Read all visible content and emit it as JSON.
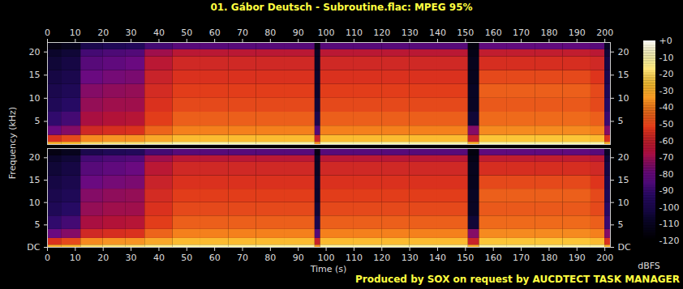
{
  "chart_data": {
    "type": "spectrogram",
    "title": "01. Gábor Deutsch - Subroutine.flac: MPEG 95%",
    "caption": "Produced by SOX on request by AUCDTECT TASK MANAGER",
    "x_label": "Time (s)",
    "y_label": "Frequency (kHz)",
    "xlim": [
      0,
      202
    ],
    "xticks": [
      0,
      10,
      20,
      30,
      40,
      50,
      60,
      70,
      80,
      90,
      100,
      110,
      120,
      130,
      140,
      150,
      160,
      170,
      180,
      190,
      200
    ],
    "ylim": [
      0,
      22.05
    ],
    "x_edges": [
      0,
      5,
      12,
      20,
      28,
      35,
      45,
      55,
      65,
      75,
      85,
      96,
      98,
      110,
      120,
      130,
      140,
      151,
      155,
      165,
      175,
      185,
      195,
      200,
      202
    ],
    "y_edges": [
      0,
      0.5,
      2,
      4,
      7,
      10,
      13,
      16,
      19,
      20.5,
      22.05
    ],
    "colorbar": {
      "label": "dBFS",
      "range": [
        -120,
        0
      ],
      "ticks": [
        {
          "value": 0,
          "label": "+0"
        },
        -10,
        -20,
        -30,
        -40,
        -50,
        -60,
        -70,
        -80,
        -90,
        -100,
        -110,
        -120
      ],
      "colors": [
        "#000000",
        "#0c0630",
        "#2a0a6a",
        "#6a0a80",
        "#b0103a",
        "#e0361a",
        "#f5801c",
        "#fcc232",
        "#fff59a",
        "#ffffff"
      ]
    },
    "channels": [
      {
        "yticks": [
          5,
          10,
          15,
          20
        ],
        "values": [
          [
            -30,
            -28,
            -20,
            -18,
            -18,
            -15,
            -12,
            -12,
            -12,
            -12,
            -12,
            -35,
            -12,
            -12,
            -12,
            -12,
            -12,
            -30,
            -12,
            -12,
            -12,
            -12,
            -12,
            -30
          ],
          [
            -55,
            -50,
            -38,
            -36,
            -36,
            -32,
            -28,
            -28,
            -28,
            -28,
            -28,
            -60,
            -28,
            -28,
            -28,
            -28,
            -28,
            -60,
            -26,
            -26,
            -26,
            -26,
            -28,
            -55
          ],
          [
            -80,
            -75,
            -58,
            -56,
            -55,
            -45,
            -40,
            -40,
            -40,
            -40,
            -40,
            -85,
            -40,
            -40,
            -40,
            -40,
            -40,
            -75,
            -38,
            -38,
            -38,
            -38,
            -40,
            -75
          ],
          [
            -92,
            -88,
            -68,
            -66,
            -65,
            -52,
            -46,
            -46,
            -46,
            -46,
            -46,
            -100,
            -46,
            -46,
            -46,
            -46,
            -46,
            -105,
            -44,
            -44,
            -44,
            -44,
            -46,
            -90
          ],
          [
            -98,
            -95,
            -72,
            -70,
            -70,
            -55,
            -50,
            -50,
            -50,
            -50,
            -50,
            -105,
            -50,
            -50,
            -50,
            -50,
            -50,
            -110,
            -47,
            -47,
            -47,
            -47,
            -50,
            -95
          ],
          [
            -100,
            -98,
            -75,
            -73,
            -72,
            -57,
            -52,
            -52,
            -52,
            -52,
            -52,
            -108,
            -52,
            -52,
            -52,
            -52,
            -52,
            -110,
            -46,
            -46,
            -46,
            -46,
            -50,
            -98
          ],
          [
            -102,
            -100,
            -80,
            -78,
            -77,
            -60,
            -55,
            -55,
            -55,
            -55,
            -55,
            -108,
            -55,
            -55,
            -55,
            -55,
            -55,
            -112,
            -50,
            -50,
            -50,
            -50,
            -54,
            -100
          ],
          [
            -105,
            -102,
            -84,
            -82,
            -80,
            -64,
            -58,
            -58,
            -58,
            -58,
            -58,
            -110,
            -58,
            -58,
            -58,
            -58,
            -58,
            -112,
            -56,
            -56,
            -56,
            -56,
            -58,
            -102
          ],
          [
            -108,
            -105,
            -88,
            -86,
            -85,
            -70,
            -64,
            -64,
            -64,
            -64,
            -64,
            -110,
            -64,
            -64,
            -64,
            -64,
            -64,
            -114,
            -62,
            -62,
            -62,
            -62,
            -64,
            -105
          ],
          [
            -115,
            -112,
            -100,
            -98,
            -97,
            -88,
            -84,
            -84,
            -84,
            -84,
            -84,
            -115,
            -84,
            -84,
            -84,
            -84,
            -84,
            -116,
            -82,
            -82,
            -82,
            -82,
            -84,
            -110
          ]
        ]
      },
      {
        "yticks": [
          {
            "value": 0,
            "label": "DC"
          },
          5,
          10,
          15,
          20
        ],
        "values": [
          [
            -30,
            -28,
            -20,
            -18,
            -18,
            -15,
            -12,
            -12,
            -12,
            -12,
            -12,
            -35,
            -12,
            -12,
            -12,
            -12,
            -12,
            -30,
            -12,
            -12,
            -12,
            -12,
            -12,
            -30
          ],
          [
            -55,
            -50,
            -38,
            -36,
            -36,
            -32,
            -28,
            -28,
            -28,
            -28,
            -28,
            -60,
            -28,
            -28,
            -28,
            -28,
            -28,
            -60,
            -26,
            -26,
            -26,
            -26,
            -28,
            -55
          ],
          [
            -80,
            -75,
            -58,
            -56,
            -55,
            -45,
            -40,
            -40,
            -40,
            -40,
            -40,
            -85,
            -40,
            -40,
            -40,
            -40,
            -40,
            -75,
            -38,
            -38,
            -38,
            -38,
            -40,
            -75
          ],
          [
            -92,
            -88,
            -68,
            -66,
            -65,
            -52,
            -46,
            -46,
            -46,
            -46,
            -46,
            -100,
            -46,
            -46,
            -46,
            -46,
            -46,
            -105,
            -44,
            -44,
            -44,
            -44,
            -46,
            -90
          ],
          [
            -98,
            -95,
            -72,
            -70,
            -70,
            -55,
            -50,
            -50,
            -50,
            -50,
            -50,
            -105,
            -50,
            -50,
            -50,
            -50,
            -50,
            -110,
            -47,
            -47,
            -47,
            -47,
            -50,
            -95
          ],
          [
            -100,
            -98,
            -75,
            -73,
            -72,
            -57,
            -52,
            -52,
            -52,
            -52,
            -52,
            -108,
            -52,
            -52,
            -52,
            -52,
            -52,
            -110,
            -46,
            -46,
            -46,
            -46,
            -50,
            -98
          ],
          [
            -102,
            -100,
            -80,
            -78,
            -77,
            -60,
            -55,
            -55,
            -55,
            -55,
            -55,
            -108,
            -55,
            -55,
            -55,
            -55,
            -55,
            -112,
            -50,
            -50,
            -50,
            -50,
            -54,
            -100
          ],
          [
            -105,
            -102,
            -84,
            -82,
            -80,
            -64,
            -58,
            -58,
            -58,
            -58,
            -58,
            -110,
            -58,
            -58,
            -58,
            -58,
            -58,
            -112,
            -56,
            -56,
            -56,
            -56,
            -58,
            -102
          ],
          [
            -108,
            -105,
            -88,
            -86,
            -85,
            -70,
            -64,
            -64,
            -64,
            -64,
            -64,
            -110,
            -64,
            -64,
            -64,
            -64,
            -64,
            -114,
            -62,
            -62,
            -62,
            -62,
            -64,
            -105
          ],
          [
            -115,
            -112,
            -100,
            -98,
            -97,
            -88,
            -84,
            -84,
            -84,
            -84,
            -84,
            -115,
            -84,
            -84,
            -84,
            -84,
            -84,
            -116,
            -82,
            -82,
            -82,
            -82,
            -84,
            -110
          ]
        ]
      }
    ]
  }
}
